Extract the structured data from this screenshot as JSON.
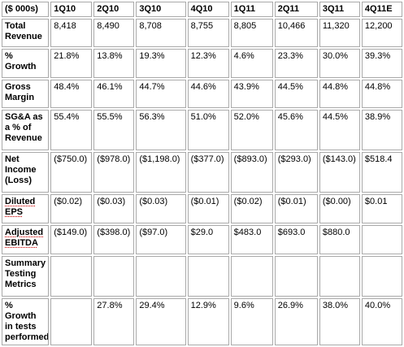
{
  "table": {
    "columns": [
      "($ 000s)",
      "1Q10",
      "2Q10",
      "3Q10",
      "4Q10",
      "1Q11",
      "2Q11",
      "3Q11",
      "4Q11E"
    ],
    "rows": [
      {
        "label": "Total Revenue",
        "cells": [
          "8,418",
          "8,490",
          "8,708",
          "8,755",
          "8,805",
          "10,466",
          "11,320",
          "12,200"
        ]
      },
      {
        "label": "% Growth",
        "cells": [
          "21.8%",
          "13.8%",
          "19.3%",
          "12.3%",
          "4.6%",
          "23.3%",
          "30.0%",
          "39.3%"
        ]
      },
      {
        "label": "Gross Margin",
        "cells": [
          "48.4%",
          "46.1%",
          "44.7%",
          "44.6%",
          "43.9%",
          "44.5%",
          "44.8%",
          "44.8%"
        ]
      },
      {
        "label": "SG&A as a % of Revenue",
        "cells": [
          "55.4%",
          "55.5%",
          "56.3%",
          "51.0%",
          "52.0%",
          "45.6%",
          "44.5%",
          "38.9%"
        ]
      },
      {
        "label": "Net Income (Loss)",
        "cells": [
          "($750.0)",
          "($978.0)",
          "($1,198.0)",
          "($377.0)",
          "($893.0)",
          "($293.0)",
          "($143.0)",
          "$518.4"
        ]
      },
      {
        "label": "Diluted EPS",
        "cells": [
          "($0.02)",
          "($0.03)",
          "($0.03)",
          "($0.01)",
          "($0.02)",
          "($0.01)",
          "($0.00)",
          "$0.01"
        ]
      },
      {
        "label": "Adjusted EBITDA",
        "cells": [
          "($149.0)",
          "($398.0)",
          "($97.0)",
          "$29.0",
          "$483.0",
          "$693.0",
          "$880.0",
          ""
        ]
      },
      {
        "label": "Summary Testing Metrics",
        "cells": [
          "",
          "",
          "",
          "",
          "",
          "",
          "",
          ""
        ]
      },
      {
        "label": "% Growth in tests performed",
        "cells": [
          "",
          "27.8%",
          "29.4%",
          "12.9%",
          "9.6%",
          "26.9%",
          "38.0%",
          "40.0%"
        ]
      }
    ]
  }
}
